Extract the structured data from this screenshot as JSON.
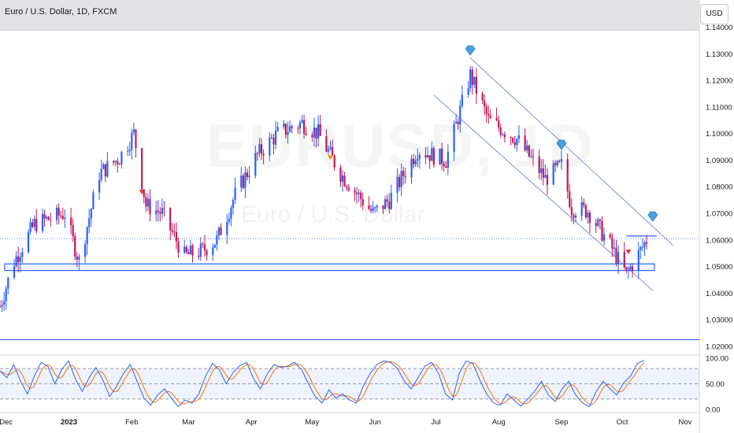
{
  "header": {
    "title": "Euro / U.S. Dollar, 1D, FXCM",
    "currency_button": "USD"
  },
  "watermark": {
    "symbol": "EURUSD, 1D",
    "name": "Euro / U.S. Dollar"
  },
  "colors": {
    "up": "#2962ff",
    "down": "#c2185b",
    "levels": "#2962ff",
    "channel": "#7f8fd9",
    "stoch_k": "#2962ff",
    "stoch_d": "#ff6d00",
    "marker": "#4aa3df"
  },
  "chart_data": [
    {
      "type": "candlestick",
      "title": "Euro / U.S. Dollar, 1D, FXCM",
      "ylim": [
        1.017,
        1.139
      ],
      "y_ticks": [
        "1.14000",
        "1.13000",
        "1.12000",
        "1.11000",
        "1.10000",
        "1.09000",
        "1.08000",
        "1.07000",
        "1.06000",
        "1.05000",
        "1.04000",
        "1.03000",
        "1.02000"
      ],
      "x_ticks": [
        "Dec",
        "2023",
        "Feb",
        "Mar",
        "Apr",
        "May",
        "Jun",
        "Jul",
        "Aug",
        "Sep",
        "Oct",
        "Nov"
      ],
      "x_range": [
        "2022-11-28",
        "2023-11-08"
      ],
      "close_path": [
        {
          "date": "2022-11-28",
          "value": 1.035
        },
        {
          "date": "2022-12-05",
          "value": 1.052
        },
        {
          "date": "2022-12-15",
          "value": 1.066
        },
        {
          "date": "2022-12-30",
          "value": 1.07
        },
        {
          "date": "2023-01-06",
          "value": 1.052
        },
        {
          "date": "2023-01-16",
          "value": 1.085
        },
        {
          "date": "2023-01-26",
          "value": 1.091
        },
        {
          "date": "2023-02-02",
          "value": 1.1
        },
        {
          "date": "2023-02-08",
          "value": 1.073
        },
        {
          "date": "2023-02-16",
          "value": 1.07
        },
        {
          "date": "2023-02-27",
          "value": 1.054
        },
        {
          "date": "2023-03-08",
          "value": 1.056
        },
        {
          "date": "2023-03-15",
          "value": 1.06
        },
        {
          "date": "2023-03-24",
          "value": 1.077
        },
        {
          "date": "2023-04-04",
          "value": 1.092
        },
        {
          "date": "2023-04-14",
          "value": 1.1
        },
        {
          "date": "2023-04-26",
          "value": 1.104
        },
        {
          "date": "2023-05-04",
          "value": 1.1
        },
        {
          "date": "2023-05-15",
          "value": 1.085
        },
        {
          "date": "2023-05-31",
          "value": 1.07
        },
        {
          "date": "2023-06-08",
          "value": 1.075
        },
        {
          "date": "2023-06-22",
          "value": 1.094
        },
        {
          "date": "2023-07-06",
          "value": 1.09
        },
        {
          "date": "2023-07-18",
          "value": 1.122
        },
        {
          "date": "2023-07-27",
          "value": 1.105
        },
        {
          "date": "2023-08-10",
          "value": 1.098
        },
        {
          "date": "2023-08-24",
          "value": 1.083
        },
        {
          "date": "2023-09-01",
          "value": 1.088
        },
        {
          "date": "2023-09-06",
          "value": 1.072
        },
        {
          "date": "2023-09-14",
          "value": 1.071
        },
        {
          "date": "2023-09-25",
          "value": 1.058
        },
        {
          "date": "2023-10-03",
          "value": 1.047
        },
        {
          "date": "2023-10-10",
          "value": 1.056
        },
        {
          "date": "2023-10-13",
          "value": 1.06
        }
      ],
      "last_price": 1.0605,
      "support_zone": [
        1.0485,
        1.051
      ],
      "lower_line": 1.0225,
      "resistance_line": {
        "value": 1.0615,
        "from": "2023-10-03",
        "to": "2023-10-18"
      },
      "channel": {
        "upper": [
          {
            "date": "2023-07-18",
            "value": 1.1285
          },
          {
            "date": "2023-10-26",
            "value": 1.058
          }
        ],
        "lower": [
          {
            "date": "2023-06-30",
            "value": 1.1145
          },
          {
            "date": "2023-10-16",
            "value": 1.041
          }
        ]
      },
      "markers": [
        {
          "type": "diamond",
          "date": "2023-07-18",
          "value": 1.131
        },
        {
          "type": "diamond",
          "date": "2023-09-01",
          "value": 1.0955
        },
        {
          "type": "diamond",
          "date": "2023-10-16",
          "value": 1.0685
        },
        {
          "type": "triangle-down",
          "date": "2023-02-06",
          "value": 1.078
        },
        {
          "type": "triangle-down",
          "date": "2023-05-10",
          "value": 1.091
        },
        {
          "type": "triangle-down",
          "date": "2023-10-04",
          "value": 1.0555
        }
      ]
    },
    {
      "type": "line",
      "title": "",
      "ylim": [
        -5,
        105
      ],
      "y_ticks": [
        "100.00",
        "50.00",
        "0.00"
      ],
      "bands": [
        20,
        50,
        80
      ],
      "series": [
        {
          "name": "",
          "values": [
            75,
            62,
            88,
            55,
            30,
            65,
            92,
            84,
            50,
            78,
            95,
            60,
            35,
            62,
            82,
            58,
            25,
            45,
            70,
            88,
            55,
            22,
            8,
            28,
            40,
            22,
            5,
            18,
            12,
            30,
            65,
            90,
            78,
            50,
            72,
            86,
            92,
            60,
            40,
            70,
            88,
            82,
            85,
            92,
            78,
            50,
            25,
            12,
            38,
            22,
            30,
            18,
            12,
            45,
            70,
            88,
            95,
            92,
            80,
            55,
            40,
            62,
            85,
            92,
            70,
            30,
            18,
            70,
            95,
            90,
            58,
            30,
            12,
            8,
            30,
            18,
            6,
            20,
            35,
            55,
            28,
            15,
            40,
            55,
            28,
            12,
            5,
            35,
            55,
            40,
            28,
            52,
            65,
            90,
            96
          ]
        }
      ]
    }
  ]
}
